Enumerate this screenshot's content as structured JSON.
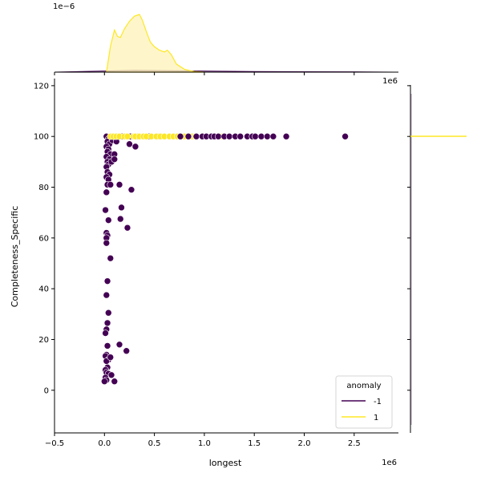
{
  "chart_data": {
    "type": "scatter",
    "subtype": "jointplot",
    "title": "",
    "xlabel": "longest",
    "ylabel": "Completeness_Specific",
    "x_offset_label": "1e6",
    "top_marginal_offset_label": "1e−6",
    "right_marginal_offset_label": "1e6",
    "xlim": [
      -0.5,
      2.95
    ],
    "ylim": [
      -17,
      120
    ],
    "x_scale": 1000000,
    "xticks": [
      -0.5,
      0.0,
      0.5,
      1.0,
      1.5,
      2.0,
      2.5
    ],
    "xtick_labels": [
      "−0.5",
      "0.0",
      "0.5",
      "1.0",
      "1.5",
      "2.0",
      "2.5"
    ],
    "yticks": [
      0,
      20,
      40,
      60,
      80,
      100,
      120
    ],
    "ytick_labels": [
      "0",
      "20",
      "40",
      "60",
      "80",
      "100",
      "120"
    ],
    "grid": false,
    "legend": {
      "title": "anomaly",
      "position": "lower right",
      "entries": [
        {
          "label": "-1",
          "color": "#440154"
        },
        {
          "label": "1",
          "color": "#fde725"
        }
      ]
    },
    "series": [
      {
        "name": "-1",
        "color": "#440154",
        "points": [
          [
            0.02,
            100
          ],
          [
            0.04,
            99
          ],
          [
            0.03,
            98
          ],
          [
            0.05,
            97
          ],
          [
            0.02,
            96
          ],
          [
            0.04,
            95
          ],
          [
            0.03,
            94
          ],
          [
            0.06,
            93
          ],
          [
            0.02,
            92
          ],
          [
            0.05,
            91
          ],
          [
            0.03,
            90
          ],
          [
            0.04,
            89
          ],
          [
            0.02,
            88
          ],
          [
            0.03,
            86
          ],
          [
            0.05,
            85
          ],
          [
            0.02,
            84
          ],
          [
            0.04,
            83
          ],
          [
            0.03,
            81
          ],
          [
            0.06,
            81
          ],
          [
            0.02,
            78
          ],
          [
            0.01,
            71
          ],
          [
            0.04,
            67
          ],
          [
            0.02,
            62
          ],
          [
            0.03,
            61
          ],
          [
            0.02,
            60
          ],
          [
            0.02,
            58
          ],
          [
            0.06,
            52
          ],
          [
            0.03,
            43
          ],
          [
            0.02,
            37.5
          ],
          [
            0.04,
            30.5
          ],
          [
            0.03,
            26.5
          ],
          [
            0.02,
            24
          ],
          [
            0.01,
            22.5
          ],
          [
            0.03,
            17.5
          ],
          [
            0.02,
            14
          ],
          [
            0.01,
            13.5
          ],
          [
            0.04,
            12
          ],
          [
            0.02,
            11.5
          ],
          [
            0.03,
            9
          ],
          [
            0.01,
            8
          ],
          [
            0.02,
            7
          ],
          [
            0.04,
            6.5
          ],
          [
            0.01,
            5
          ],
          [
            0.02,
            4
          ],
          [
            0.0,
            3.5
          ],
          [
            0.07,
            6
          ],
          [
            0.1,
            3.5
          ],
          [
            0.06,
            13
          ],
          [
            0.08,
            98.5
          ],
          [
            0.12,
            98
          ],
          [
            0.1,
            93
          ],
          [
            0.07,
            90
          ],
          [
            0.1,
            91
          ],
          [
            0.15,
            81
          ],
          [
            0.27,
            79
          ],
          [
            0.17,
            72
          ],
          [
            0.16,
            67.5
          ],
          [
            0.23,
            64
          ],
          [
            0.15,
            18
          ],
          [
            0.22,
            15.5
          ],
          [
            0.25,
            97
          ],
          [
            0.31,
            96
          ],
          [
            0.1,
            100
          ],
          [
            0.18,
            100
          ],
          [
            0.26,
            100
          ],
          [
            0.33,
            100
          ],
          [
            0.45,
            100
          ],
          [
            0.55,
            100
          ],
          [
            0.76,
            100
          ],
          [
            0.84,
            100
          ],
          [
            0.92,
            100
          ],
          [
            0.98,
            100
          ],
          [
            1.02,
            100
          ],
          [
            1.07,
            100
          ],
          [
            1.1,
            100
          ],
          [
            1.14,
            100
          ],
          [
            1.2,
            100
          ],
          [
            1.25,
            100
          ],
          [
            1.31,
            100
          ],
          [
            1.36,
            100
          ],
          [
            1.43,
            100
          ],
          [
            1.48,
            100
          ],
          [
            1.51,
            100
          ],
          [
            1.57,
            100
          ],
          [
            1.63,
            100
          ],
          [
            1.69,
            100
          ],
          [
            1.82,
            100
          ],
          [
            2.41,
            100
          ]
        ]
      },
      {
        "name": "1",
        "color": "#fde725",
        "points": [
          [
            0.06,
            100
          ],
          [
            0.09,
            100
          ],
          [
            0.12,
            100
          ],
          [
            0.15,
            100
          ],
          [
            0.2,
            100
          ],
          [
            0.23,
            100
          ],
          [
            0.29,
            100
          ],
          [
            0.31,
            100
          ],
          [
            0.35,
            100
          ],
          [
            0.39,
            100
          ],
          [
            0.42,
            100
          ],
          [
            0.47,
            100
          ],
          [
            0.52,
            100
          ],
          [
            0.56,
            100
          ],
          [
            0.6,
            100
          ],
          [
            0.65,
            100
          ],
          [
            0.69,
            100
          ],
          [
            0.73,
            100
          ],
          [
            0.8,
            100
          ],
          [
            0.86,
            100
          ],
          [
            0.88,
            100
          ],
          [
            0.91,
            100
          ],
          [
            1.18,
            100
          ]
        ]
      }
    ],
    "top_marginal": {
      "type": "kde",
      "series": [
        {
          "name": "1",
          "color": "#fde725",
          "fill": "#fdf3b8",
          "x": [
            0.02,
            0.06,
            0.1,
            0.13,
            0.16,
            0.2,
            0.25,
            0.3,
            0.35,
            0.38,
            0.42,
            0.46,
            0.5,
            0.55,
            0.6,
            0.63,
            0.67,
            0.72,
            0.8,
            0.9,
            1.0
          ],
          "density_rel": [
            0.0,
            0.45,
            0.73,
            0.62,
            0.6,
            0.75,
            0.88,
            0.97,
            1.0,
            0.9,
            0.7,
            0.52,
            0.44,
            0.38,
            0.35,
            0.38,
            0.3,
            0.14,
            0.05,
            0.01,
            0.0
          ]
        },
        {
          "name": "-1",
          "color": "#440154",
          "fill": "#8b7a97",
          "x": [
            -0.5,
            0.0,
            0.3,
            1.0,
            1.5,
            2.5,
            2.9
          ],
          "density_rel": [
            0.0,
            0.02,
            0.03,
            0.02,
            0.01,
            0.005,
            0.0
          ]
        }
      ]
    },
    "right_marginal": {
      "type": "kde",
      "series": [
        {
          "name": "1",
          "color": "#fde725",
          "note": "spike at y=100"
        },
        {
          "name": "-1",
          "color": "#440154",
          "note": "near-zero flat density along y"
        }
      ]
    }
  }
}
